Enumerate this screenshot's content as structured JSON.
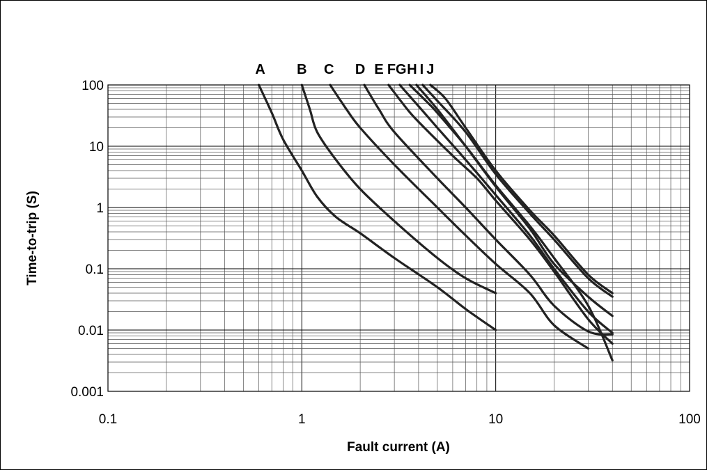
{
  "chart_data": {
    "type": "line",
    "title": "",
    "xlabel": "Fault current (A)",
    "ylabel": "Time-to-trip (S)",
    "x_scale": "log",
    "y_scale": "log",
    "xlim": [
      0.1,
      100
    ],
    "ylim": [
      0.001,
      100
    ],
    "x_ticks": [
      {
        "value": 0.1,
        "label": "0.1"
      },
      {
        "value": 1,
        "label": "1"
      },
      {
        "value": 10,
        "label": "10"
      },
      {
        "value": 100,
        "label": "100"
      }
    ],
    "y_ticks": [
      {
        "value": 0.001,
        "label": "0.001"
      },
      {
        "value": 0.01,
        "label": "0.01"
      },
      {
        "value": 0.1,
        "label": "0.1"
      },
      {
        "value": 1,
        "label": "1"
      },
      {
        "value": 10,
        "label": "10"
      },
      {
        "value": 100,
        "label": "100"
      }
    ],
    "grid": true,
    "line_color": "#222222",
    "series": [
      {
        "name": "A",
        "label_x": 0.61,
        "points": [
          [
            0.6,
            100
          ],
          [
            0.7,
            35
          ],
          [
            0.8,
            13
          ],
          [
            1.0,
            4
          ],
          [
            1.2,
            1.5
          ],
          [
            1.5,
            0.7
          ],
          [
            2.0,
            0.38
          ],
          [
            3.0,
            0.15
          ],
          [
            5.0,
            0.05
          ],
          [
            7.0,
            0.022
          ],
          [
            10.0,
            0.01
          ]
        ]
      },
      {
        "name": "B",
        "label_x": 1.0,
        "points": [
          [
            1.0,
            100
          ],
          [
            1.1,
            40
          ],
          [
            1.2,
            17
          ],
          [
            1.5,
            6
          ],
          [
            2.0,
            2
          ],
          [
            3.0,
            0.6
          ],
          [
            5.0,
            0.15
          ],
          [
            7.0,
            0.07
          ],
          [
            10.0,
            0.04
          ]
        ]
      },
      {
        "name": "C",
        "label_x": 1.38,
        "points": [
          [
            1.4,
            100
          ],
          [
            1.7,
            40
          ],
          [
            2.0,
            20
          ],
          [
            3.0,
            5
          ],
          [
            5.0,
            1
          ],
          [
            7.0,
            0.35
          ],
          [
            10.0,
            0.12
          ],
          [
            15.0,
            0.04
          ],
          [
            20.0,
            0.012
          ],
          [
            30.0,
            0.005
          ]
        ]
      },
      {
        "name": "D",
        "label_x": 2.0,
        "points": [
          [
            2.1,
            100
          ],
          [
            2.5,
            40
          ],
          [
            3.0,
            17
          ],
          [
            5.0,
            3
          ],
          [
            7.0,
            1
          ],
          [
            10.0,
            0.3
          ],
          [
            15.0,
            0.08
          ],
          [
            20.0,
            0.025
          ],
          [
            30.0,
            0.0095
          ],
          [
            40.0,
            0.0085
          ]
        ]
      },
      {
        "name": "E",
        "label_x": 2.5,
        "points": [
          [
            2.8,
            100
          ],
          [
            3.5,
            40
          ],
          [
            4.0,
            25
          ],
          [
            6.0,
            7
          ],
          [
            8.0,
            3
          ],
          [
            10.0,
            1.3
          ],
          [
            15.0,
            0.3
          ],
          [
            20.0,
            0.09
          ],
          [
            30.0,
            0.015
          ],
          [
            40.0,
            0.006
          ]
        ]
      },
      {
        "name": "F",
        "label_x": 2.9,
        "points": [
          [
            3.2,
            100
          ],
          [
            4.0,
            45
          ],
          [
            5.0,
            20
          ],
          [
            7.0,
            6
          ],
          [
            10.0,
            1.6
          ],
          [
            15.0,
            0.35
          ],
          [
            20.0,
            0.1
          ],
          [
            30.0,
            0.02
          ],
          [
            40.0,
            0.009
          ]
        ]
      },
      {
        "name": "G",
        "label_x": 3.25,
        "points": [
          [
            3.6,
            100
          ],
          [
            4.5,
            50
          ],
          [
            5.0,
            35
          ],
          [
            7.0,
            10
          ],
          [
            10.0,
            2.3
          ],
          [
            15.0,
            0.5
          ],
          [
            20.0,
            0.15
          ],
          [
            30.0,
            0.025
          ],
          [
            40.0,
            0.0032
          ]
        ]
      },
      {
        "name": "H",
        "label_x": 3.7,
        "points": [
          [
            3.9,
            100
          ],
          [
            5.0,
            40
          ],
          [
            7.0,
            10
          ],
          [
            10.0,
            2.2
          ],
          [
            15.0,
            0.45
          ],
          [
            20.0,
            0.12
          ],
          [
            30.0,
            0.035
          ],
          [
            40.0,
            0.017
          ]
        ]
      },
      {
        "name": "I",
        "label_x": 4.15,
        "points": [
          [
            4.2,
            100
          ],
          [
            5.0,
            55
          ],
          [
            7.0,
            17
          ],
          [
            10.0,
            3.5
          ],
          [
            15.0,
            0.8
          ],
          [
            20.0,
            0.3
          ],
          [
            30.0,
            0.07
          ],
          [
            40.0,
            0.035
          ]
        ]
      },
      {
        "name": "J",
        "label_x": 4.6,
        "points": [
          [
            4.6,
            100
          ],
          [
            5.5,
            60
          ],
          [
            7.0,
            20
          ],
          [
            10.0,
            4
          ],
          [
            15.0,
            0.9
          ],
          [
            20.0,
            0.35
          ],
          [
            30.0,
            0.08
          ],
          [
            40.0,
            0.04
          ]
        ]
      }
    ]
  }
}
